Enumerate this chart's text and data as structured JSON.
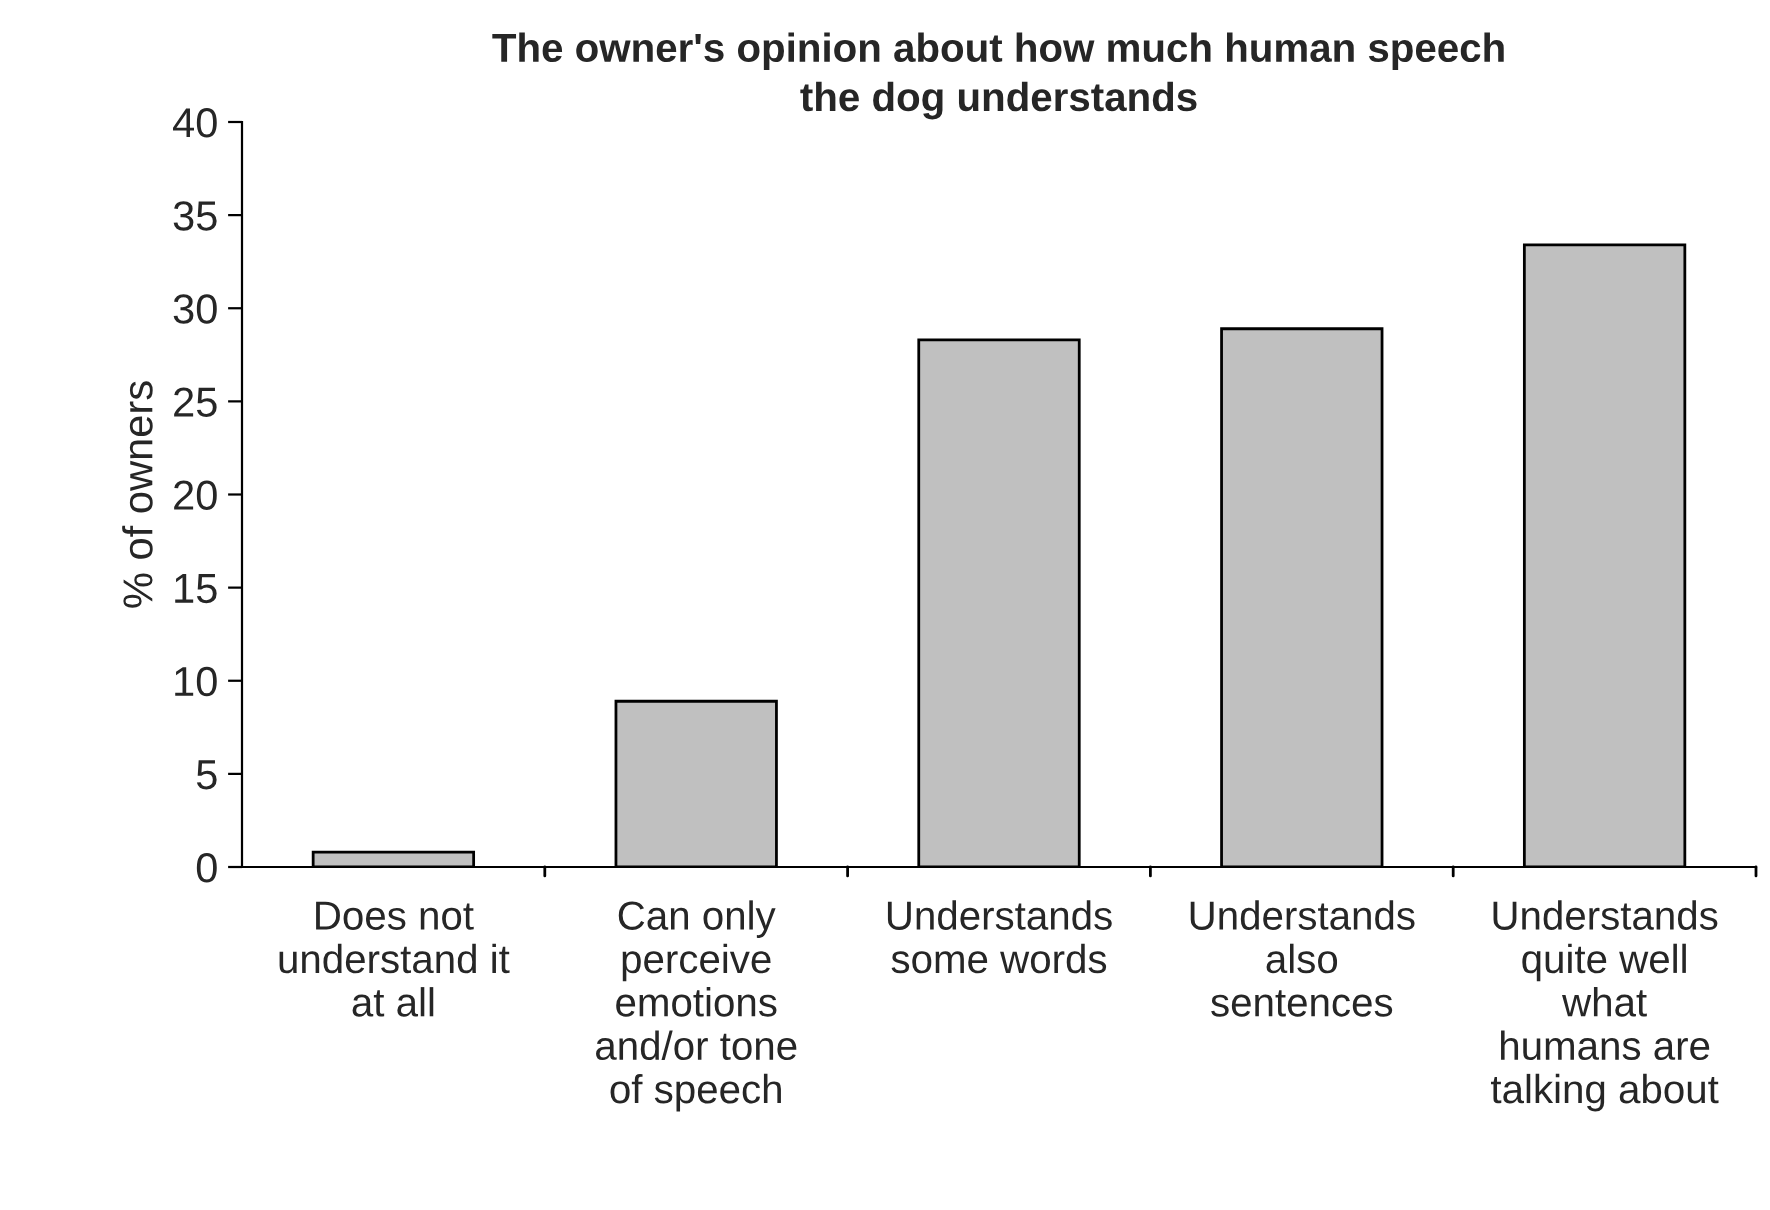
{
  "chart_data": {
    "type": "bar",
    "title": "The owner's opinion about how much human speech\nthe dog understands",
    "ylabel": "% of owners",
    "categories": [
      "Does not\nunderstand it\nat all",
      "Can only\nperceive\nemotions\nand/or tone\nof speech",
      "Understands\nsome words",
      "Understands\nalso\nsentences",
      "Understands\nquite well\nwhat\nhumans are\ntalking about"
    ],
    "values": [
      0.8,
      8.9,
      28.3,
      28.9,
      33.4
    ],
    "color": "#c0c0c0",
    "ylim": [
      0,
      40
    ],
    "yticks": [
      0,
      5,
      10,
      15,
      20,
      25,
      30,
      35,
      40
    ],
    "grid": false
  }
}
